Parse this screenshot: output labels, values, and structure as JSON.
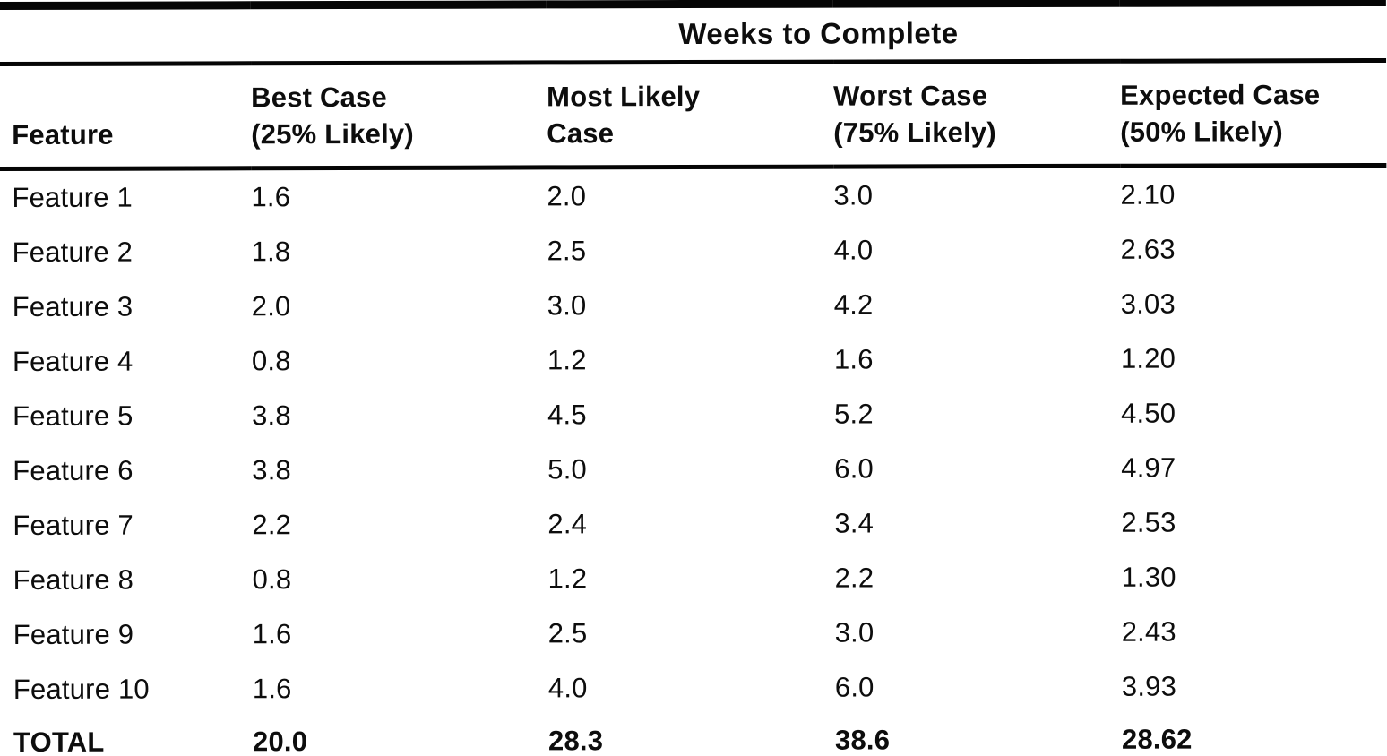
{
  "page": {
    "background_color": "#ffffff",
    "text_color": "#0d0d0d",
    "rule_color": "#050505"
  },
  "table": {
    "title_spanner": "Weeks to Complete",
    "columns": [
      {
        "id": "feature",
        "label": "Feature"
      },
      {
        "id": "best",
        "label": "Best Case\n(25% Likely)"
      },
      {
        "id": "most_likely",
        "label": "Most Likely\nCase"
      },
      {
        "id": "worst",
        "label": "Worst Case\n(75% Likely)"
      },
      {
        "id": "expected",
        "label": "Expected Case\n(50% Likely)"
      }
    ],
    "rows": [
      {
        "feature": "Feature 1",
        "best": "1.6",
        "most_likely": "2.0",
        "worst": "3.0",
        "expected": "2.10"
      },
      {
        "feature": "Feature 2",
        "best": "1.8",
        "most_likely": "2.5",
        "worst": "4.0",
        "expected": "2.63"
      },
      {
        "feature": "Feature 3",
        "best": "2.0",
        "most_likely": "3.0",
        "worst": "4.2",
        "expected": "3.03"
      },
      {
        "feature": "Feature 4",
        "best": "0.8",
        "most_likely": "1.2",
        "worst": "1.6",
        "expected": "1.20"
      },
      {
        "feature": "Feature 5",
        "best": "3.8",
        "most_likely": "4.5",
        "worst": "5.2",
        "expected": "4.50"
      },
      {
        "feature": "Feature 6",
        "best": "3.8",
        "most_likely": "5.0",
        "worst": "6.0",
        "expected": "4.97"
      },
      {
        "feature": "Feature 7",
        "best": "2.2",
        "most_likely": "2.4",
        "worst": "3.4",
        "expected": "2.53"
      },
      {
        "feature": "Feature 8",
        "best": "0.8",
        "most_likely": "1.2",
        "worst": "2.2",
        "expected": "1.30"
      },
      {
        "feature": "Feature 9",
        "best": "1.6",
        "most_likely": "2.5",
        "worst": "3.0",
        "expected": "2.43"
      },
      {
        "feature": "Feature 10",
        "best": "1.6",
        "most_likely": "4.0",
        "worst": "6.0",
        "expected": "3.93"
      }
    ],
    "total": {
      "feature": "TOTAL",
      "best": "20.0",
      "most_likely": "28.3",
      "worst": "38.6",
      "expected": "28.62"
    }
  }
}
